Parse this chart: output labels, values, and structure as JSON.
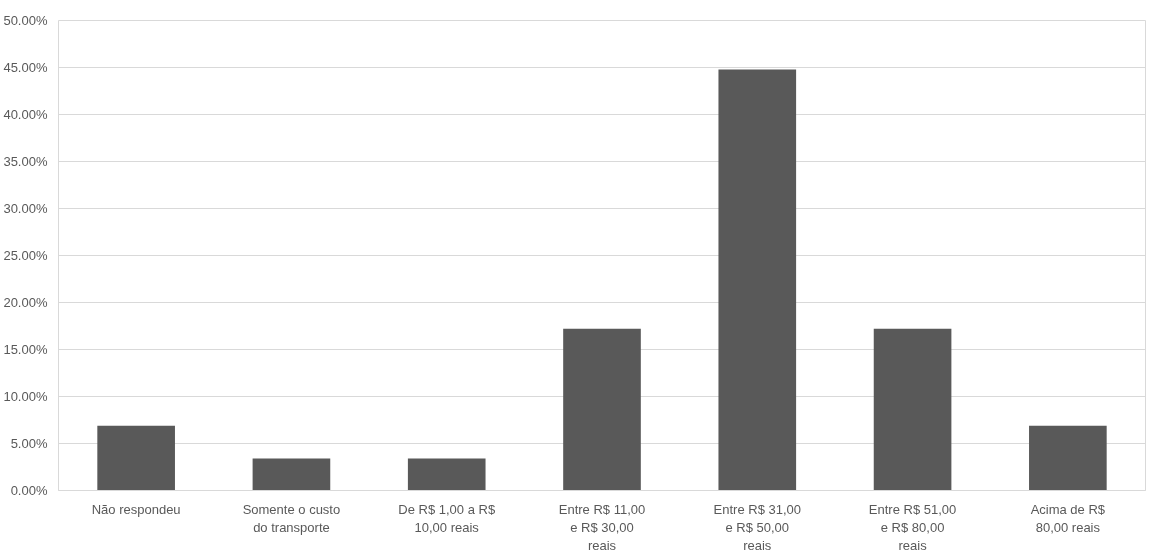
{
  "chart_data": {
    "type": "bar",
    "categories": [
      "Não respondeu",
      "Somente o custo do transporte",
      "De R$ 1,00 a R$ 10,00 reais",
      "Entre R$ 11,00 e R$ 30,00 reais",
      "Entre R$ 31,00 e R$ 50,00 reais",
      "Entre R$ 51,00 e R$ 80,00 reais",
      "Acima de R$ 80,00 reais"
    ],
    "values": [
      6.9,
      3.4,
      3.4,
      17.2,
      44.8,
      17.2,
      6.9
    ],
    "color": "#595959",
    "ylim": [
      0,
      50
    ],
    "yticks": [
      {
        "value": 0,
        "label": "0.00%"
      },
      {
        "value": 5,
        "label": "5.00%"
      },
      {
        "value": 10,
        "label": "10.00%"
      },
      {
        "value": 15,
        "label": "15.00%"
      },
      {
        "value": 20,
        "label": "20.00%"
      },
      {
        "value": 25,
        "label": "25.00%"
      },
      {
        "value": 30,
        "label": "30.00%"
      },
      {
        "value": 35,
        "label": "35.00%"
      },
      {
        "value": 40,
        "label": "40.00%"
      },
      {
        "value": 45,
        "label": "45.00%"
      },
      {
        "value": 50,
        "label": "50.00%"
      }
    ],
    "grid": "y"
  }
}
